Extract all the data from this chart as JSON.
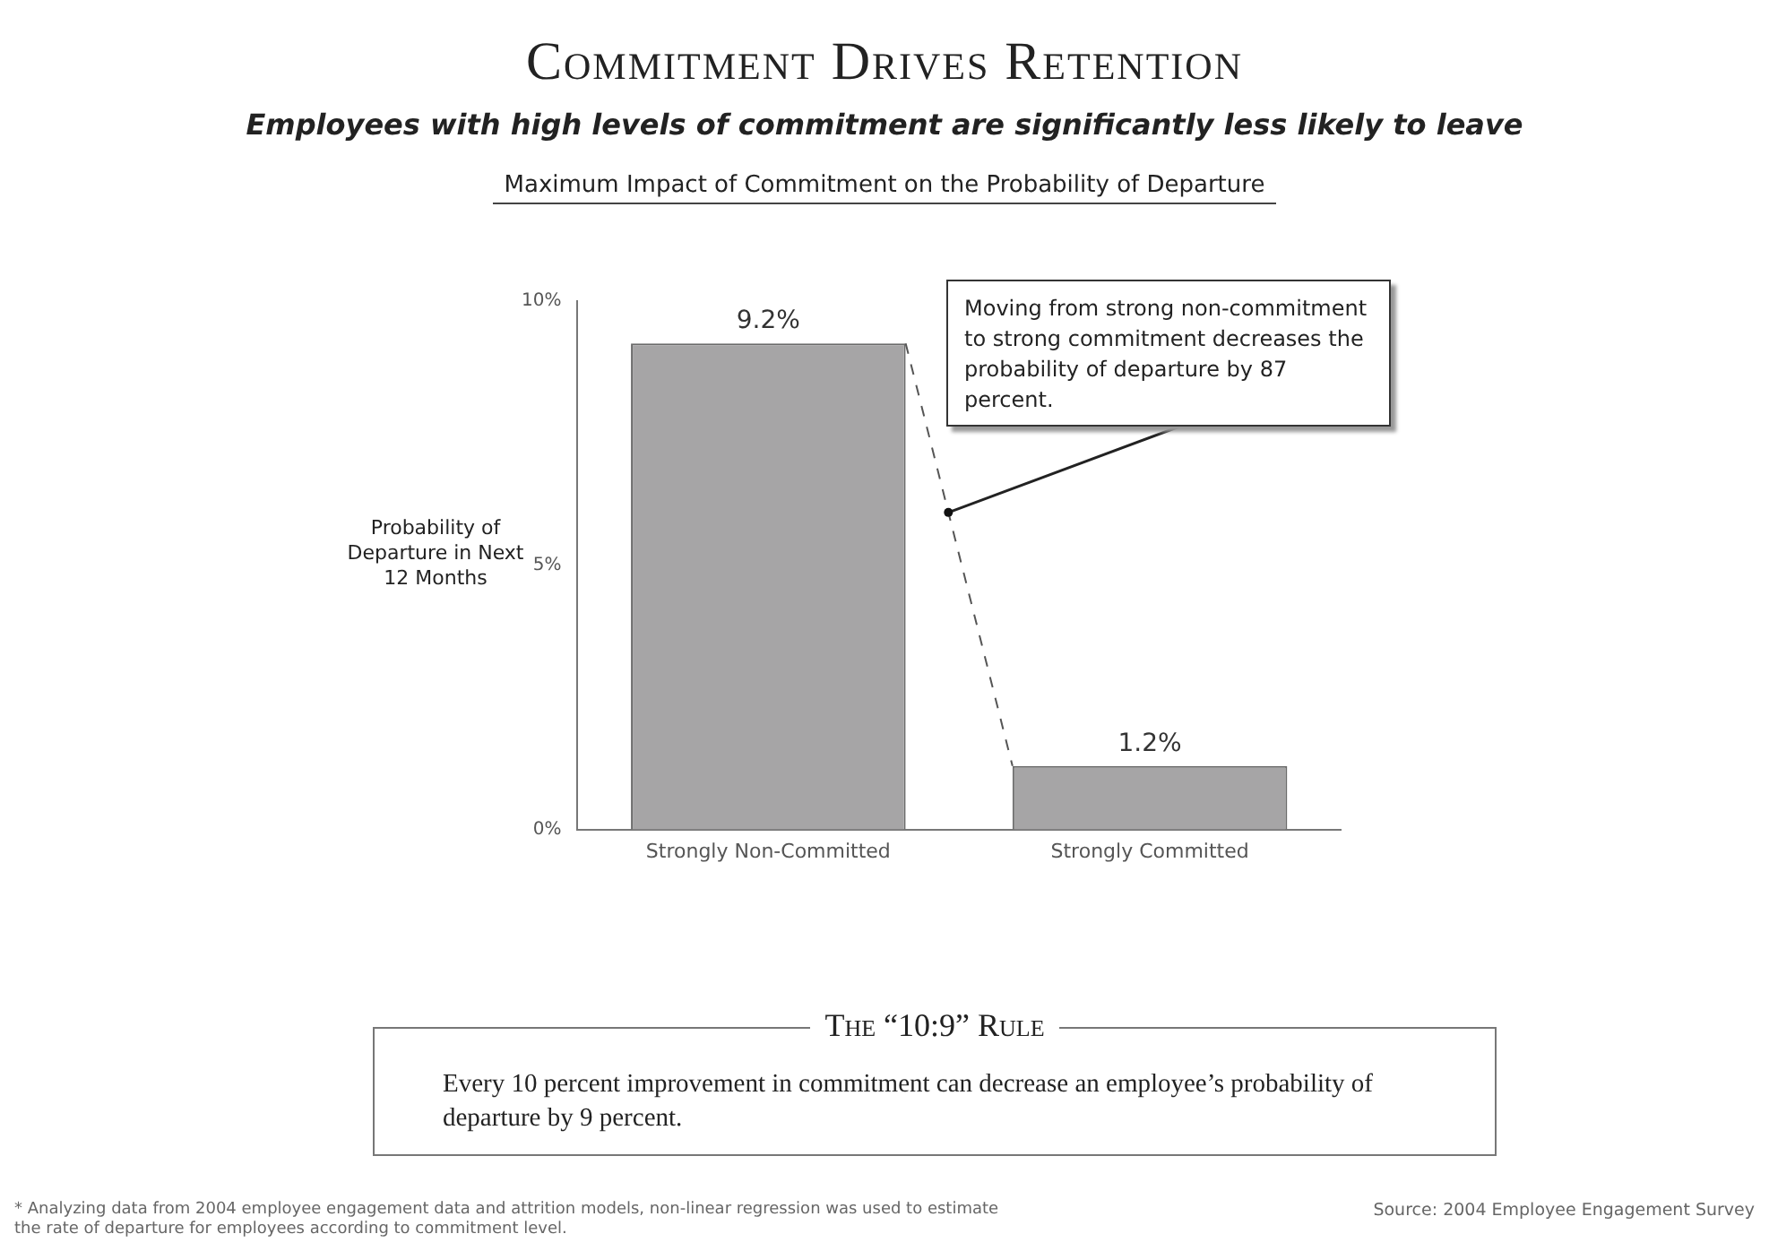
{
  "chart_data": {
    "type": "bar",
    "title": "Commitment Drives Retention",
    "subtitle": "Employees with high levels of commitment are significantly less likely to leave",
    "ylabel": "Probability of Departure in Next 12 Months",
    "categories": [
      "Strongly Non-Committed",
      "Strongly Committed"
    ],
    "values": [
      9.2,
      1.2
    ],
    "color": "#a6a5a6",
    "value_labels": [
      "9.2%",
      "1.2%"
    ],
    "ylim": [
      0,
      10
    ],
    "yticks": [
      {
        "value": 0,
        "label": "0%"
      },
      {
        "value": 5,
        "label": "5%"
      },
      {
        "value": 10,
        "label": "10%"
      }
    ],
    "grid": false,
    "legend": false,
    "annotations": [
      "Maximum Impact of Commitment on the Probability of Departure",
      "Moving from strong non-commitment to strong commitment decreases the probability of departure by 87 percent.",
      "The “10:9” Rule",
      "Every 10 percent improvement in commitment can decrease an employee’s probability of departure by 9 percent.",
      "* Analyzing data from 2004 employee engagement data and attrition models, non-linear regression was used to estimate the rate of departure for employees according to commitment level.",
      "Source: 2004 Employee Engagement Survey"
    ]
  }
}
